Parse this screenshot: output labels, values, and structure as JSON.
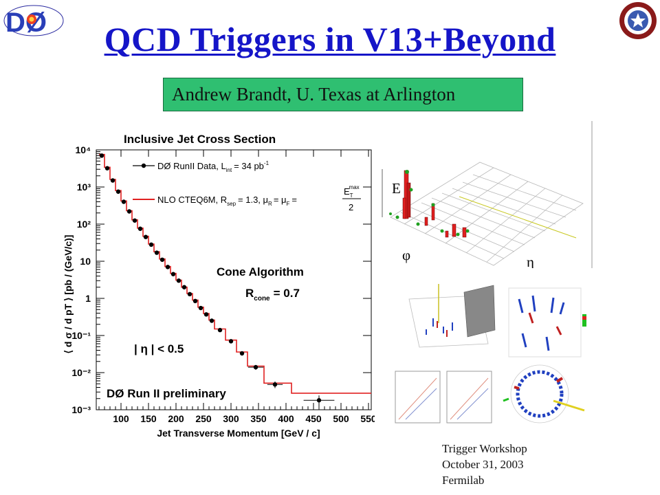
{
  "slide": {
    "title": "QCD Triggers in V13+Beyond",
    "author": "Andrew Brandt,  U. Texas at Arlington",
    "footer": [
      "Trigger Workshop",
      "October 31, 2003",
      "Fermilab"
    ],
    "logo_left_text": "DØ",
    "logo_right_text": "THE UNIVERSITY OF TEXAS AT ARLINGTON",
    "colors": {
      "title": "#1515c8",
      "author_box": "#2fbf71",
      "model_line": "#e02020",
      "data_points": "#000000"
    }
  },
  "event_display": {
    "axis_labels": {
      "e": "E",
      "phi": "φ",
      "eta": "η"
    }
  },
  "chart_data": {
    "type": "scatter",
    "title": "Inclusive Jet Cross Section",
    "xlabel": "Jet Transverse Momentum [GeV / c]",
    "ylabel": "⟨ d σ / d pT ⟩ [pb / (GeV/c)]",
    "yscale": "log",
    "xlim": [
      55,
      555
    ],
    "ylim": [
      0.001,
      10000
    ],
    "x_ticks": [
      "100",
      "150",
      "200",
      "250",
      "300",
      "350",
      "400",
      "450",
      "500",
      "550"
    ],
    "y_ticks": [
      "10⁴",
      "10³",
      "10²",
      "10",
      "1",
      "10⁻¹",
      "10⁻²",
      "10⁻³"
    ],
    "legend": {
      "data_label": "DØ RunII Data, L",
      "data_sub": "int",
      "data_value": "= 34 pb",
      "data_sup": "-1",
      "model_label": "NLO CTEQ6M,  R",
      "model_sub": "sep",
      "model_value": "= 1.3,  μ",
      "model_mu_r_sub": "R",
      "model_mu_eq": "= μ",
      "model_mu_f_sub": "F",
      "model_frac_lhs": "=",
      "model_frac_num": "E",
      "model_frac_num_sub": "T",
      "model_frac_num_sup": "max",
      "model_frac_den": "2",
      "placement": "top"
    },
    "annotations": {
      "cone": "Cone Algorithm",
      "rcone_label": "R",
      "rcone_sub": "cone",
      "rcone_value": "= 0.7",
      "eta_cut": "| η | < 0.5",
      "preliminary": "DØ Run II preliminary"
    },
    "series": [
      {
        "name": "DØ RunII Data",
        "x": [
          65,
          75,
          85,
          95,
          105,
          115,
          125,
          135,
          145,
          155,
          165,
          175,
          185,
          195,
          205,
          215,
          225,
          235,
          245,
          255,
          265,
          280,
          300,
          320,
          345,
          380,
          460
        ],
        "values": [
          7000,
          3200,
          1500,
          750,
          400,
          220,
          125,
          75,
          45,
          28,
          17,
          11,
          7,
          4.5,
          3.0,
          2.0,
          1.3,
          0.85,
          0.55,
          0.37,
          0.25,
          0.14,
          0.07,
          0.033,
          0.014,
          0.0048,
          0.0018
        ],
        "errors": [
          0.05,
          0.05,
          0.05,
          0.05,
          0.05,
          0.05,
          0.05,
          0.05,
          0.05,
          0.05,
          0.05,
          0.05,
          0.05,
          0.05,
          0.05,
          0.05,
          0.05,
          0.05,
          0.05,
          0.06,
          0.07,
          0.08,
          0.1,
          0.12,
          0.15,
          0.2,
          0.35
        ]
      },
      {
        "name": "NLO CTEQ6M",
        "type": "step",
        "edges": [
          60,
          70,
          80,
          90,
          100,
          110,
          120,
          130,
          140,
          150,
          160,
          170,
          180,
          190,
          200,
          210,
          220,
          230,
          240,
          250,
          260,
          270,
          290,
          310,
          330,
          360,
          410,
          560
        ],
        "values": [
          7500,
          3400,
          1600,
          800,
          420,
          230,
          130,
          78,
          47,
          29,
          18,
          11.5,
          7.2,
          4.7,
          3.1,
          2.0,
          1.35,
          0.9,
          0.58,
          0.39,
          0.26,
          0.15,
          0.075,
          0.036,
          0.015,
          0.0052,
          0.0028
        ]
      }
    ]
  }
}
